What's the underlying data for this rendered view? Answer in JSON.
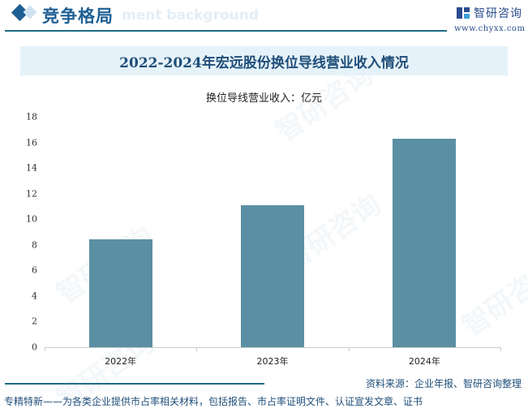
{
  "header": {
    "section_title": "竞争格局",
    "section_ghost_text": "ment background",
    "logo_text": "智研咨询",
    "logo_url": "www.chyxx.com"
  },
  "chart": {
    "title": "2022-2024年宏远股份换位导线营业收入情况",
    "unit_label": "换位导线营业收入：亿元"
  },
  "chart_data": {
    "type": "bar",
    "title": "2022-2024年宏远股份换位导线营业收入情况",
    "subtitle": "换位导线营业收入：亿元",
    "categories": [
      "2022年",
      "2023年",
      "2024年"
    ],
    "values": [
      8.4,
      11.1,
      16.3
    ],
    "xlabel": "",
    "ylabel": "亿元",
    "ylim": [
      0,
      18
    ],
    "yticks": [
      0,
      2,
      4,
      6,
      8,
      10,
      12,
      14,
      16,
      18
    ],
    "grid": false,
    "legend": null,
    "bar_color": "#5b8fa3"
  },
  "footer": {
    "source": "资料来源：企业年报、智研咨询整理",
    "note": "专精特新——为各类企业提供市占率相关材料，包括报告、市占率证明文件、认证宣发文章、证书"
  },
  "watermark": "智研咨询"
}
